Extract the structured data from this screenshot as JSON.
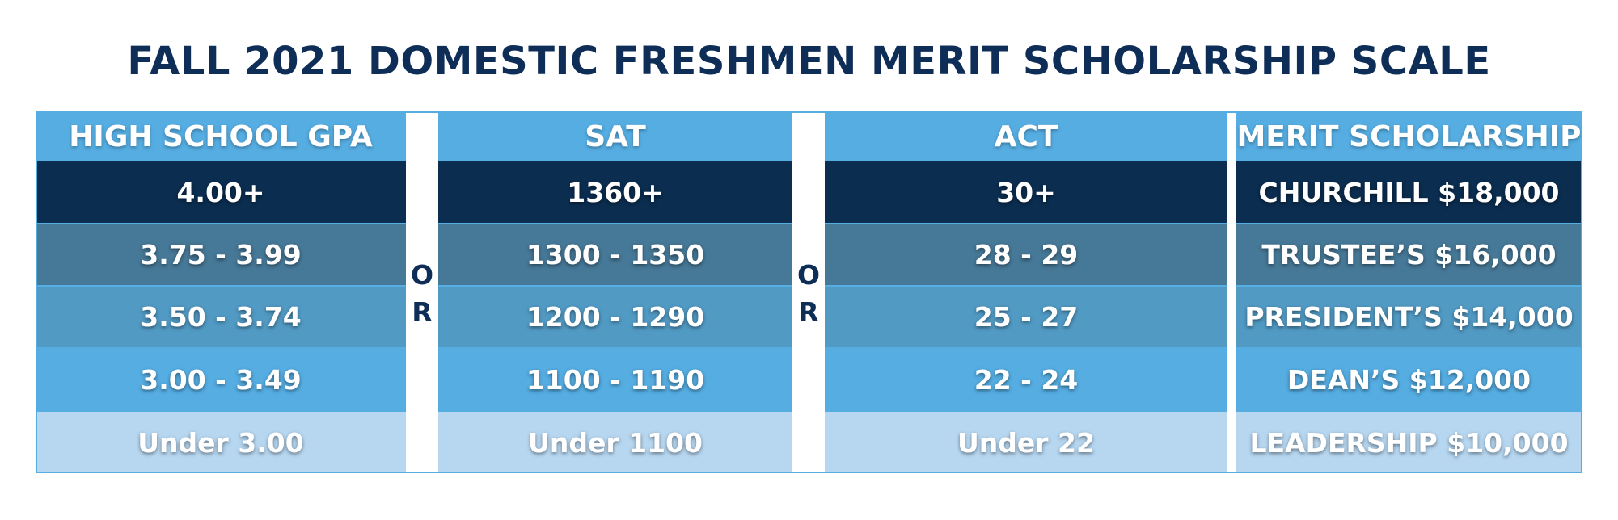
{
  "title": "FALL 2021 DOMESTIC FRESHMEN MERIT SCHOLARSHIP SCALE",
  "connector": "OR",
  "chart_data": {
    "type": "table",
    "title": "FALL 2021 DOMESTIC FRESHMEN MERIT SCHOLARSHIP SCALE",
    "columns": [
      "HIGH SCHOOL GPA",
      "SAT",
      "ACT",
      "MERIT SCHOLARSHIP"
    ],
    "rows": [
      [
        "4.00+",
        "1360+",
        "30+",
        "CHURCHILL $18,000"
      ],
      [
        "3.75 - 3.99",
        "1300 - 1350",
        "28 - 29",
        "TRUSTEE’S $16,000"
      ],
      [
        "3.50 - 3.74",
        "1200 - 1290",
        "25 - 27",
        "PRESIDENT’S $14,000"
      ],
      [
        "3.00 - 3.49",
        "1100 - 1190",
        "22 - 24",
        "DEAN’S $12,000"
      ],
      [
        "Under 3.00",
        "Under 1100",
        "Under 22",
        "LEADERSHIP $10,000"
      ]
    ],
    "row_colors": [
      "#0b2d50",
      "#467897",
      "#519ac4",
      "#55ade2",
      "#b7d7f1"
    ],
    "header_color": "#55ade2",
    "title_color": "#0e2e58"
  }
}
